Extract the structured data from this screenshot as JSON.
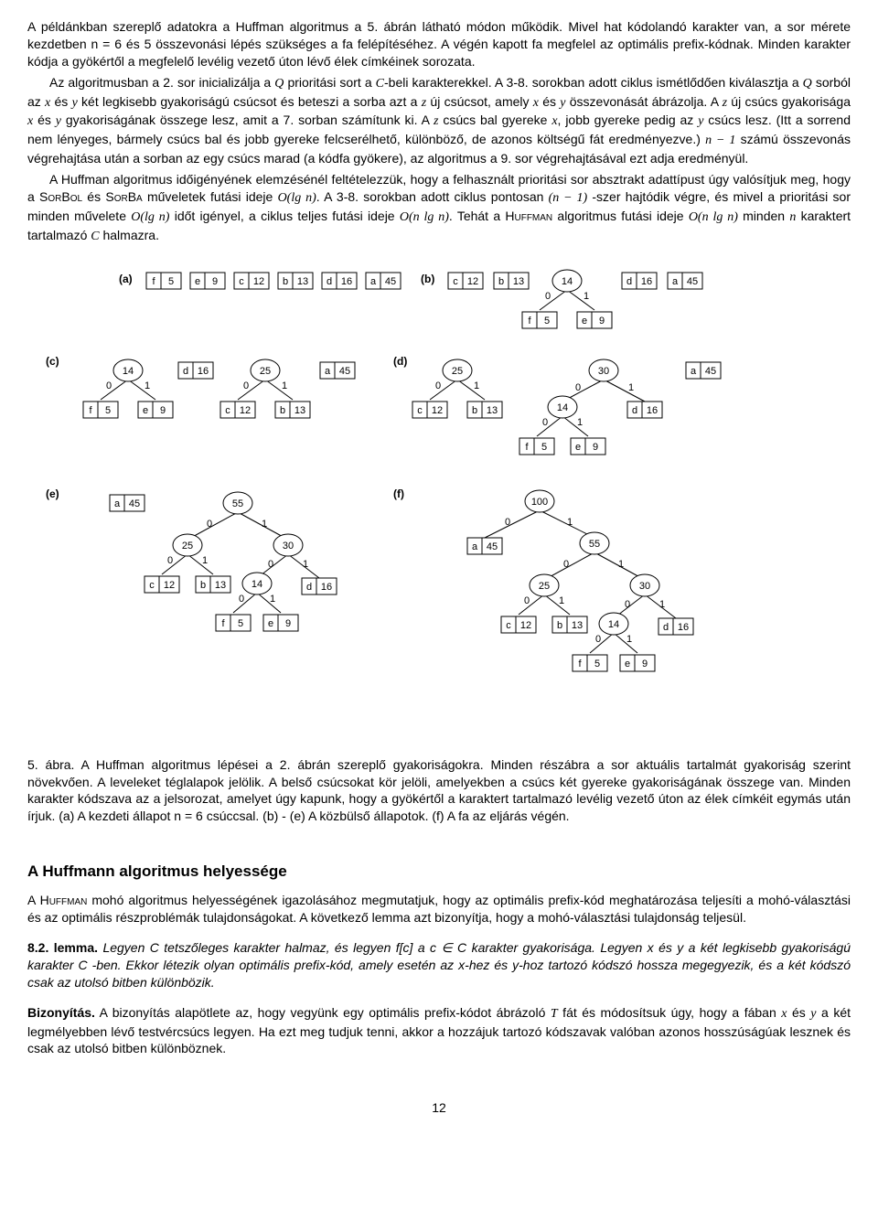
{
  "para1": "A példánkban szereplő adatokra a Huffman algoritmus a 5. ábrán látható módon működik. Mivel hat kódolandó karakter van, a sor mérete kezdetben n = 6 és 5 összevonási lépés szükséges a fa felépítéséhez. A végén kapott fa megfelel az optimális prefix-kódnak. Minden karakter kódja a gyökértől a megfelelő levélig vezető úton lévő élek címkéinek sorozata.",
  "para2a": "Az algoritmusban a 2. sor inicializálja a ",
  "para2b": " prioritási sort a ",
  "para2c": "-beli karakterekkel. A 3-8. sorokban adott ciklus ismétlődően kiválasztja a ",
  "para2d": " sorból az ",
  "para2e": " és ",
  "para2f": " két legkisebb gyakoriságú csúcsot és beteszi a sorba azt a ",
  "para2g": " új csúcsot, amely ",
  "para2h": " és ",
  "para2i": " összevonását ábrázolja. A ",
  "para2j": " új csúcs gyakorisága ",
  "para2k": " és ",
  "para2l": " gyakoriságának összege lesz, amit a 7. sorban számítunk ki. A ",
  "para2m": " csúcs bal gyereke ",
  "para2n": ", jobb gyereke pedig az ",
  "para2o": " csúcs lesz. (Itt a sorrend nem lényeges, bármely csúcs bal és jobb gyereke felcserélhető, különböző, de azonos költségű fát eredményezve.) ",
  "para2p": " számú összevonás végrehajtása után a sorban az egy csúcs marad (a kódfa gyökere), az algoritmus a 9. sor végrehajtásával ezt adja eredményül.",
  "para3a": "A Huffman algoritmus időigényének elemzésénél feltételezzük, hogy a felhasznált prioritási sor absztrakt adattípust úgy valósítjuk meg, hogy a ",
  "para3b": " és ",
  "para3c": " műveletek futási ideje ",
  "para3d": ". A 3-8. sorokban adott ciklus pontosan ",
  "para3e": " -szer hajtódik végre, és mivel a prioritási sor minden művelete ",
  "para3f": " időt igényel, a ciklus teljes futási ideje ",
  "para3g": ". Tehát a ",
  "para3h": " algoritmus futási ideje ",
  "para3i": " minden ",
  "para3j": " karaktert tartalmazó ",
  "para3k": " halmazra.",
  "sorBol": "SorBol",
  "sorBa": "SorBa",
  "huffman": "Huffman",
  "captionA": "5. ábra.  A Huffman algoritmus lépései a 2. ábrán szereplő gyakoriságokra. Minden részábra a sor aktuális tartalmát gyakoriság szerint növekvően. A leveleket téglalapok jelölik. A belső csúcsokat kör jelöli, amelyekben a csúcs két gyereke gyakoriságának összege van. Minden karakter kódszava az a jelsorozat, amelyet úgy kapunk, hogy a gyökértől a karaktert tartalmazó levélig vezető úton az élek címkéit egymás után írjuk. (a) A kezdeti állapot n = 6 csúccsal. (b) - (e) A közbülső állapotok. (f) A fa az eljárás végén.",
  "sectionTitle": "A Huffmann algoritmus helyessége",
  "para4a": "A ",
  "para4b": " mohó algoritmus helyességének igazolásához megmutatjuk, hogy az optimális prefix-kód meghatározása teljesíti a mohó-választási és az optimális részproblémák tulajdonságokat. A következő lemma azt bizonyítja, hogy a mohó-választási tulajdonság teljesül.",
  "lemmaLabel": "8.2. lemma.",
  "lemmaA": "Legyen C tetszőleges karakter halmaz, és legyen f[c] a c ∈ C karakter gyakorisága. Legyen x és y a két legkisebb gyakoriságú karakter C -ben. Ekkor létezik olyan optimális prefix-kód, amely esetén az x-hez és y-hoz tartozó kódszó hossza megegyezik, és a két kódszó csak az utolsó bitben különbözik.",
  "proofLabel": "Bizonyítás.",
  "proofA": "A bizonyítás alapötlete az, hogy vegyünk egy optimális prefix-kódot ábrázoló ",
  "proofB": " fát és módosítsuk úgy, hogy a fában ",
  "proofC": " és ",
  "proofD": " a két legmélyebben lévő testvércsúcs legyen. Ha ezt meg tudjuk tenni, akkor a hozzájuk tartozó kódszavak valóban azonos hosszúságúak lesznek és csak az utolsó bitben különböznek.",
  "pageNum": "12",
  "figure": {
    "node_fill": "#ffffff",
    "node_stroke": "#000000",
    "text_color": "#000000",
    "font_size": 11,
    "label_font_size": 12,
    "leaf_w": 36,
    "leaf_h": 18,
    "circle_r": 14,
    "edge_label_0": "0",
    "edge_label_1": "1",
    "panels": {
      "a": {
        "label": "(a)",
        "leaves": [
          {
            "ch": "f",
            "v": 5
          },
          {
            "ch": "e",
            "v": 9
          },
          {
            "ch": "c",
            "v": 12
          },
          {
            "ch": "b",
            "v": 13
          },
          {
            "ch": "d",
            "v": 16
          },
          {
            "ch": "a",
            "v": 45
          }
        ]
      },
      "b": {
        "label": "(b)",
        "queue_leaves": [
          {
            "ch": "c",
            "v": 12
          },
          {
            "ch": "b",
            "v": 13
          },
          {
            "ch": "d",
            "v": 16
          },
          {
            "ch": "a",
            "v": 45
          }
        ],
        "tree": {
          "root": {
            "v": 14
          },
          "left": {
            "ch": "f",
            "v": 5
          },
          "right": {
            "ch": "e",
            "v": 9
          }
        }
      },
      "c": {
        "label": "(c)",
        "queue_leaves": [
          {
            "ch": "d",
            "v": 16
          },
          {
            "ch": "a",
            "v": 45
          }
        ],
        "trees": [
          {
            "root": {
              "v": 14
            },
            "left": {
              "ch": "f",
              "v": 5
            },
            "right": {
              "ch": "e",
              "v": 9
            }
          },
          {
            "root": {
              "v": 25
            },
            "left": {
              "ch": "c",
              "v": 12
            },
            "right": {
              "ch": "b",
              "v": 13
            }
          }
        ]
      },
      "d": {
        "label": "(d)",
        "queue_leaves": [
          {
            "ch": "a",
            "v": 45
          }
        ],
        "trees": [
          {
            "root": {
              "v": 25
            },
            "left": {
              "ch": "c",
              "v": 12
            },
            "right": {
              "ch": "b",
              "v": 13
            }
          },
          {
            "root": {
              "v": 30
            },
            "left_tree": {
              "root": {
                "v": 14
              },
              "left": {
                "ch": "f",
                "v": 5
              },
              "right": {
                "ch": "e",
                "v": 9
              }
            },
            "right": {
              "ch": "d",
              "v": 16
            }
          }
        ]
      },
      "e": {
        "label": "(e)",
        "queue_leaves": [
          {
            "ch": "a",
            "v": 45
          }
        ],
        "tree": {
          "root": {
            "v": 55
          },
          "left": {
            "root": {
              "v": 25
            },
            "left": {
              "ch": "c",
              "v": 12
            },
            "right": {
              "ch": "b",
              "v": 13
            }
          },
          "right": {
            "root": {
              "v": 30
            },
            "left": {
              "root": {
                "v": 14
              },
              "left": {
                "ch": "f",
                "v": 5
              },
              "right": {
                "ch": "e",
                "v": 9
              }
            },
            "right": {
              "ch": "d",
              "v": 16
            }
          }
        }
      },
      "f": {
        "label": "(f)",
        "tree": {
          "root": {
            "v": 100
          },
          "left": {
            "ch": "a",
            "v": 45
          },
          "right": {
            "root": {
              "v": 55
            },
            "left": {
              "root": {
                "v": 25
              },
              "left": {
                "ch": "c",
                "v": 12
              },
              "right": {
                "ch": "b",
                "v": 13
              }
            },
            "right": {
              "root": {
                "v": 30
              },
              "left": {
                "root": {
                  "v": 14
                },
                "left": {
                  "ch": "f",
                  "v": 5
                },
                "right": {
                  "ch": "e",
                  "v": 9
                }
              },
              "right": {
                "ch": "d",
                "v": 16
              }
            }
          }
        }
      }
    }
  }
}
